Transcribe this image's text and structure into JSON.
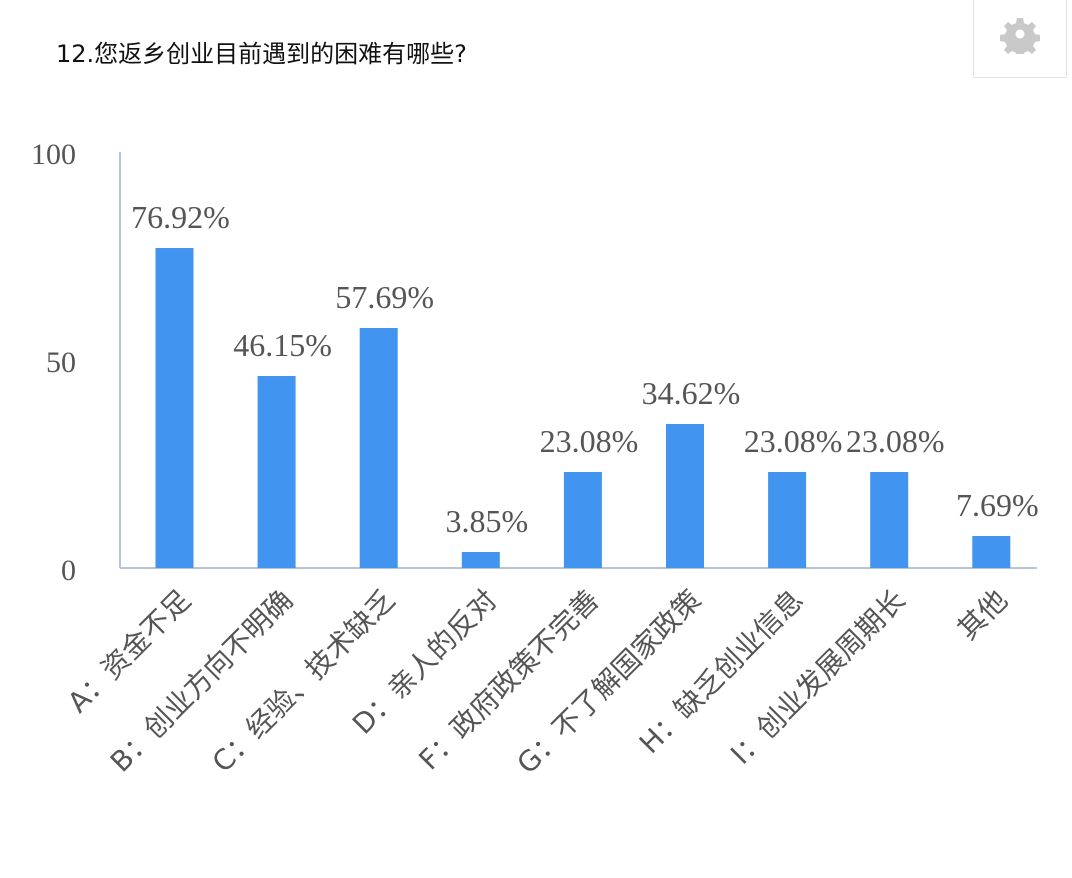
{
  "header": {
    "title": "12.您返乡创业目前遇到的困难有哪些?",
    "settings_icon": "gear-icon"
  },
  "colors": {
    "bar": "#4195f1",
    "axis": "#b7c5d6",
    "text": "#555555"
  },
  "chart_data": {
    "type": "bar",
    "title": "12.您返乡创业目前遇到的困难有哪些?",
    "categories": [
      "A：资金不足",
      "B：创业方向不明确",
      "C：经验、技术缺乏",
      "D：亲人的反对",
      "F：政府政策不完善",
      "G：不了解国家政策",
      "H：缺乏创业信息",
      "I：创业发展周期长",
      "其他"
    ],
    "values": [
      76.92,
      46.15,
      57.69,
      3.85,
      23.08,
      34.62,
      23.08,
      23.08,
      7.69
    ],
    "data_labels": [
      "76.92%",
      "46.15%",
      "57.69%",
      "3.85%",
      "23.08%",
      "34.62%",
      "23.08%",
      "23.08%",
      "7.69%"
    ],
    "ylim": [
      0,
      100
    ],
    "yticks": [
      0,
      50,
      100
    ],
    "xlabel": "",
    "ylabel": "",
    "grid": false,
    "legend": "none"
  }
}
